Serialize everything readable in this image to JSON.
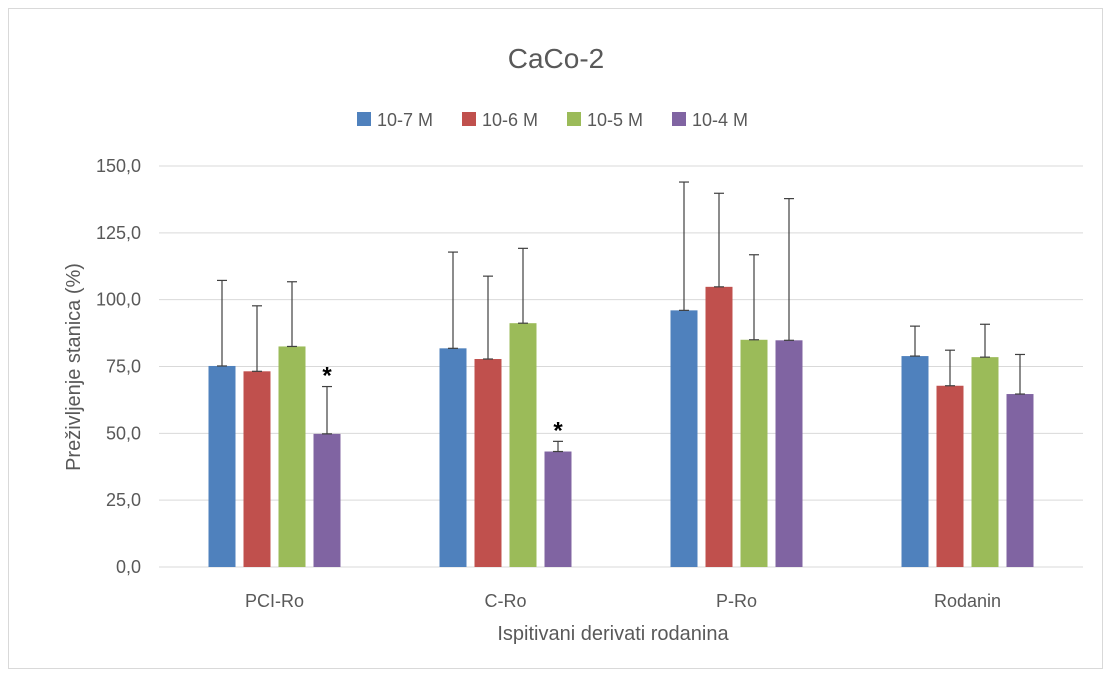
{
  "chart_data": {
    "type": "bar",
    "title": "CaCo-2",
    "xlabel": "Ispitivani derivati rodanina",
    "ylabel": "Preživljenje stanica (%)",
    "ylim": [
      0,
      150
    ],
    "yticks": [
      "0,0",
      "25,0",
      "50,0",
      "75,0",
      "100,0",
      "125,0",
      "150,0"
    ],
    "ytick_values": [
      0,
      25,
      50,
      75,
      100,
      125,
      150
    ],
    "grid": true,
    "legend_position": "top",
    "categories": [
      "PCI-Ro",
      "C-Ro",
      "P-Ro",
      "Rodanin"
    ],
    "series": [
      {
        "name": "10-7 M",
        "color": "#4f81bd",
        "values": [
          75.2,
          81.8,
          96.0,
          78.9
        ],
        "errors": [
          32.0,
          36.0,
          48.0,
          11.2
        ]
      },
      {
        "name": "10-6 M",
        "color": "#c0504d",
        "values": [
          73.2,
          77.8,
          104.8,
          67.8
        ],
        "errors": [
          24.5,
          31.0,
          35.0,
          13.3
        ]
      },
      {
        "name": "10-5 M",
        "color": "#9bbb59",
        "values": [
          82.5,
          91.2,
          85.0,
          78.5
        ],
        "errors": [
          24.2,
          28.0,
          31.8,
          12.3
        ]
      },
      {
        "name": "10-4 M",
        "color": "#8064a2",
        "values": [
          49.8,
          43.2,
          84.8,
          64.7
        ],
        "errors": [
          17.7,
          3.8,
          53.0,
          14.8
        ]
      }
    ],
    "annotations": [
      {
        "text": "*",
        "category": "PCI-Ro",
        "series": "10-4 M"
      },
      {
        "text": "*",
        "category": "C-Ro",
        "series": "10-4 M"
      }
    ]
  }
}
